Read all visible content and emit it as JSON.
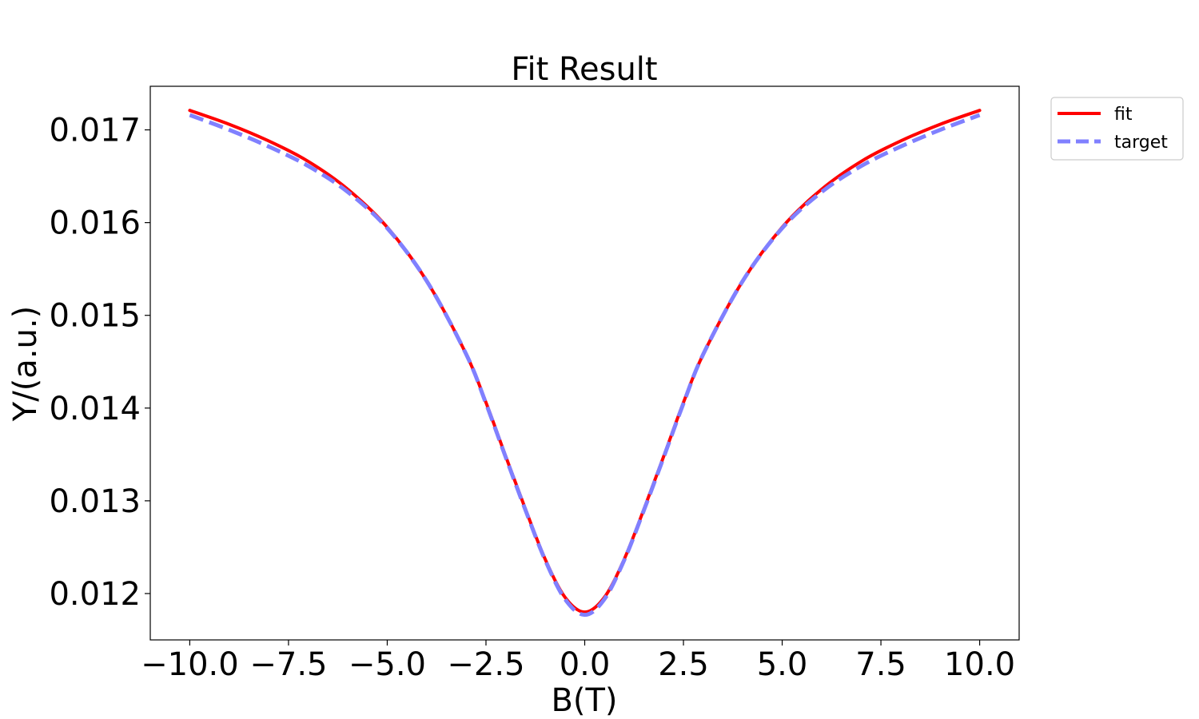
{
  "chart_data": {
    "type": "line",
    "title": "Fit Result",
    "xlabel": "B(T)",
    "ylabel": "Y/(a.u.)",
    "xlim": [
      -11.0,
      11.0
    ],
    "ylim": [
      0.0115,
      0.01747
    ],
    "xticks": [
      -10.0,
      -7.5,
      -5.0,
      -2.5,
      0.0,
      2.5,
      5.0,
      7.5,
      10.0
    ],
    "xtick_labels": [
      "−10.0",
      "−7.5",
      "−5.0",
      "−2.5",
      "0.0",
      "2.5",
      "5.0",
      "7.5",
      "10.0"
    ],
    "yticks": [
      0.012,
      0.013,
      0.014,
      0.015,
      0.016,
      0.017
    ],
    "ytick_labels": [
      "0.012",
      "0.013",
      "0.014",
      "0.015",
      "0.016",
      "0.017"
    ],
    "grid": false,
    "legend_position": "outside top-right",
    "x": [
      -10.0,
      -9.0,
      -8.0,
      -7.0,
      -6.0,
      -5.0,
      -4.0,
      -3.0,
      -2.5,
      -2.0,
      -1.5,
      -1.0,
      -0.5,
      0.0,
      0.5,
      1.0,
      1.5,
      2.0,
      2.5,
      3.0,
      4.0,
      5.0,
      6.0,
      7.0,
      8.0,
      9.0,
      10.0
    ],
    "series": [
      {
        "name": "fit",
        "color": "#ff0000",
        "style": "solid",
        "values": [
          0.01721,
          0.01706,
          0.01688,
          0.01666,
          0.01636,
          0.01595,
          0.01537,
          0.01458,
          0.01406,
          0.01348,
          0.01291,
          0.01237,
          0.01196,
          0.0118,
          0.01196,
          0.01237,
          0.01291,
          0.01348,
          0.01406,
          0.01458,
          0.01537,
          0.01595,
          0.01636,
          0.01666,
          0.01688,
          0.01706,
          0.01721
        ]
      },
      {
        "name": "target",
        "color": "#8080ff",
        "style": "dashed",
        "values": [
          0.01716,
          0.017,
          0.01682,
          0.01661,
          0.01633,
          0.01594,
          0.01537,
          0.01458,
          0.01405,
          0.01347,
          0.0129,
          0.01236,
          0.01194,
          0.01177,
          0.01194,
          0.01236,
          0.0129,
          0.01347,
          0.01405,
          0.01458,
          0.01537,
          0.01594,
          0.01633,
          0.01661,
          0.01682,
          0.017,
          0.01716
        ]
      }
    ]
  }
}
